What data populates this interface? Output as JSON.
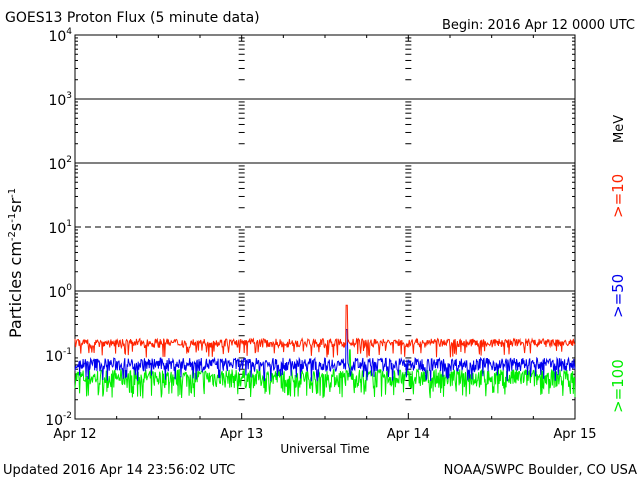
{
  "chart_data": {
    "type": "line",
    "title": "GOES13 Proton Flux (5 minute data)",
    "begin_label": "Begin: 2016 Apr 12 0000 UTC",
    "xlabel": "Universal Time",
    "ylabel_prefix": "Particles cm",
    "ylabel_sup1": "-2",
    "ylabel_s": "s",
    "ylabel_sup2": "-1",
    "ylabel_sr": "sr",
    "ylabel_sup3": "-1",
    "y_scale": "log",
    "ylim": [
      0.01,
      10000
    ],
    "y_ticks": [
      {
        "value": 0.01,
        "base": "10",
        "exp": "-2"
      },
      {
        "value": 0.1,
        "base": "10",
        "exp": "-1"
      },
      {
        "value": 1,
        "base": "10",
        "exp": "0"
      },
      {
        "value": 10,
        "base": "10",
        "exp": "1"
      },
      {
        "value": 100,
        "base": "10",
        "exp": "2"
      },
      {
        "value": 1000,
        "base": "10",
        "exp": "3"
      },
      {
        "value": 10000,
        "base": "10",
        "exp": "4"
      }
    ],
    "x_range_days": [
      0,
      3
    ],
    "x_ticks": [
      {
        "value": 0,
        "label": "Apr 12"
      },
      {
        "value": 1,
        "label": "Apr 13"
      },
      {
        "value": 2,
        "label": "Apr 14"
      },
      {
        "value": 3,
        "label": "Apr 15"
      }
    ],
    "threshold_lines": [
      {
        "value": 1000,
        "style": "solid"
      },
      {
        "value": 100,
        "style": "solid"
      },
      {
        "value": 10,
        "style": "dashed"
      },
      {
        "value": 1,
        "style": "solid"
      }
    ],
    "unit_label": "MeV",
    "series": [
      {
        "name": ">=10",
        "color": "#ff2200",
        "baseline": 0.13,
        "spread": 0.18,
        "peak": {
          "x": 1.63,
          "y": 0.6
        }
      },
      {
        "name": ">=50",
        "color": "#0000ee",
        "baseline": 0.055,
        "spread": 0.09,
        "peak": {
          "x": 1.63,
          "y": 0.25
        }
      },
      {
        "name": ">=100",
        "color": "#00ee00",
        "baseline": 0.03,
        "spread": 0.06,
        "peak": {
          "x": 1.65,
          "y": 0.12
        }
      }
    ]
  },
  "footer": {
    "updated": "Updated 2016 Apr 14 23:56:02 UTC",
    "credit": "NOAA/SWPC Boulder, CO USA"
  }
}
